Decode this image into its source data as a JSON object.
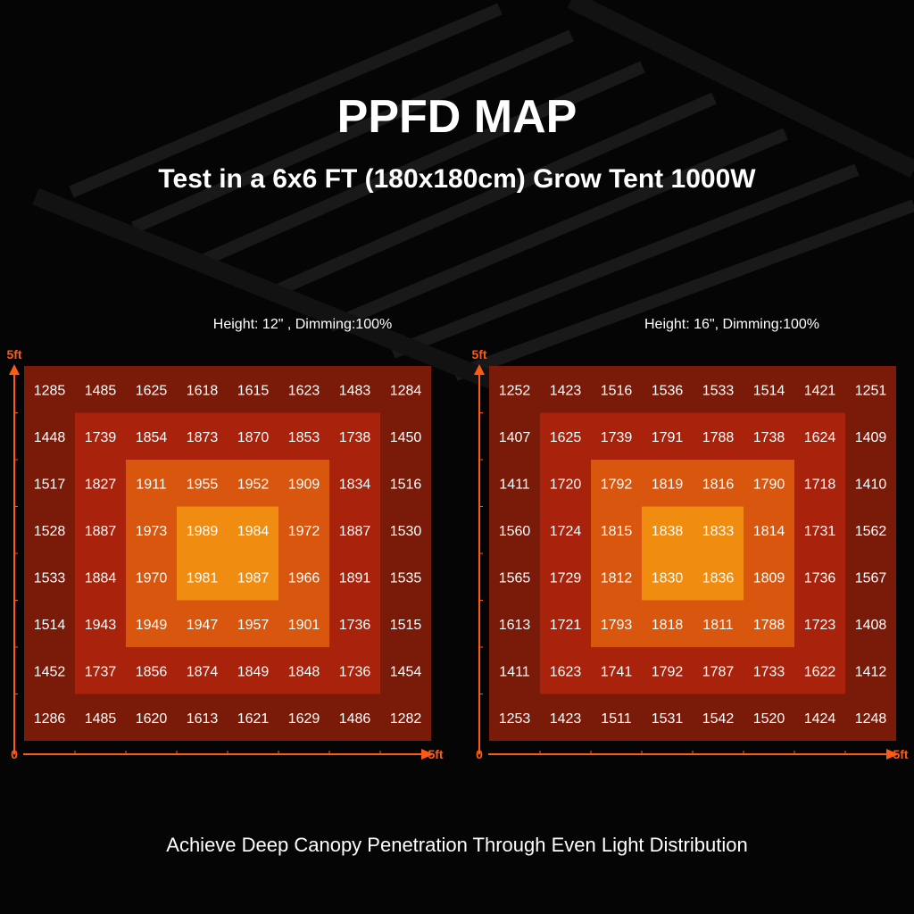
{
  "title": "PPFD MAP",
  "subtitle": "Test in a 6x6 FT (180x180cm) Grow Tent 1000W",
  "maps": [
    {
      "caption": "Height: 12\" , Dimming:100%",
      "y_axis_label": "5ft",
      "origin_label": "0",
      "x_axis_label": "5ft",
      "rows": [
        [
          "1285",
          "1485",
          "1625",
          "1618",
          "1615",
          "1623",
          "1483",
          "1284"
        ],
        [
          "1448",
          "1739",
          "1854",
          "1873",
          "1870",
          "1853",
          "1738",
          "1450"
        ],
        [
          "1517",
          "1827",
          "1911",
          "1955",
          "1952",
          "1909",
          "1834",
          "1516"
        ],
        [
          "1528",
          "1887",
          "1973",
          "1989",
          "1984",
          "1972",
          "1887",
          "1530"
        ],
        [
          "1533",
          "1884",
          "1970",
          "1981",
          "1987",
          "1966",
          "1891",
          "1535"
        ],
        [
          "1514",
          "1943",
          "1949",
          "1947",
          "1957",
          "1901",
          "1736",
          "1515"
        ],
        [
          "1452",
          "1737",
          "1856",
          "1874",
          "1849",
          "1848",
          "1736",
          "1454"
        ],
        [
          "1286",
          "1485",
          "1620",
          "1613",
          "1621",
          "1629",
          "1486",
          "1282"
        ]
      ]
    },
    {
      "caption": "Height: 16\", Dimming:100%",
      "y_axis_label": "5ft",
      "origin_label": "0",
      "x_axis_label": "5ft",
      "rows": [
        [
          "1252",
          "1423",
          "1516",
          "1536",
          "1533",
          "1514",
          "1421",
          "1251"
        ],
        [
          "1407",
          "1625",
          "1739",
          "1791",
          "1788",
          "1738",
          "1624",
          "1409"
        ],
        [
          "1411",
          "1720",
          "1792",
          "1819",
          "1816",
          "1790",
          "1718",
          "1410"
        ],
        [
          "1560",
          "1724",
          "1815",
          "1838",
          "1833",
          "1814",
          "1731",
          "1562"
        ],
        [
          "1565",
          "1729",
          "1812",
          "1830",
          "1836",
          "1809",
          "1736",
          "1567"
        ],
        [
          "1613",
          "1721",
          "1793",
          "1818",
          "1811",
          "1788",
          "1723",
          "1408"
        ],
        [
          "1411",
          "1623",
          "1741",
          "1792",
          "1787",
          "1733",
          "1622",
          "1412"
        ],
        [
          "1253",
          "1423",
          "1511",
          "1531",
          "1542",
          "1520",
          "1424",
          "1248"
        ]
      ]
    }
  ],
  "footer": "Achieve Deep Canopy Penetration Through Even Light Distribution"
}
